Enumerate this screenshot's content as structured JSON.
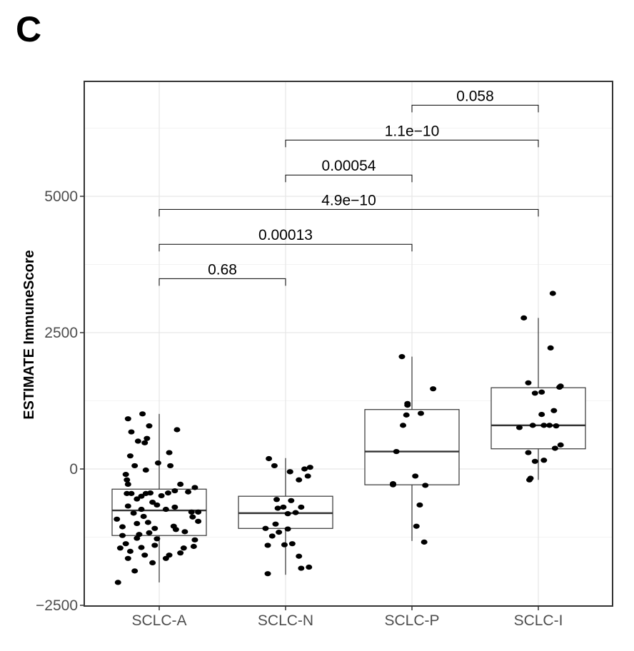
{
  "panel_label": "C",
  "chart_data": {
    "type": "box",
    "title": "",
    "xlabel": "",
    "ylabel": "ESTIMATE ImmuneScore",
    "ylim": [
      -2500,
      7300
    ],
    "yticks": [
      -2500,
      0,
      2500,
      5000
    ],
    "ytick_labels": [
      "−2500",
      "0",
      "2500",
      "5000"
    ],
    "grid": true,
    "categories": [
      "SCLC-A",
      "SCLC-N",
      "SCLC-P",
      "SCLC-I"
    ],
    "boxes": [
      {
        "name": "SCLC-A",
        "whisker_low": -2080,
        "q1": -1220,
        "median": -760,
        "q3": -370,
        "whisker_high": 1010
      },
      {
        "name": "SCLC-N",
        "whisker_low": -1940,
        "q1": -1090,
        "median": -810,
        "q3": -500,
        "whisker_high": 200
      },
      {
        "name": "SCLC-P",
        "whisker_low": -1320,
        "q1": -290,
        "median": 320,
        "q3": 1090,
        "whisker_high": 2060
      },
      {
        "name": "SCLC-I",
        "whisker_low": -200,
        "q1": 370,
        "median": 800,
        "q3": 1490,
        "whisker_high": 2770
      }
    ],
    "points": [
      [
        [
          -1.5,
          1010
        ],
        [
          -2.8,
          920
        ],
        [
          -0.9,
          790
        ],
        [
          1.6,
          720
        ],
        [
          -2.5,
          680
        ],
        [
          -1.1,
          560
        ],
        [
          -1.9,
          510
        ],
        [
          -1.3,
          480
        ],
        [
          0.9,
          300
        ],
        [
          -2.6,
          240
        ],
        [
          -0.1,
          110
        ],
        [
          1.0,
          60
        ],
        [
          -2.2,
          60
        ],
        [
          -3.0,
          -100
        ],
        [
          -1.2,
          -20
        ],
        [
          -2.9,
          -200
        ],
        [
          -2.8,
          -280
        ],
        [
          1.9,
          -280
        ],
        [
          1.4,
          -400
        ],
        [
          0.8,
          -440
        ],
        [
          -2.9,
          -450
        ],
        [
          -2.5,
          -450
        ],
        [
          -1.2,
          -450
        ],
        [
          3.2,
          -340
        ],
        [
          2.6,
          -420
        ],
        [
          -0.8,
          -440
        ],
        [
          0.2,
          -490
        ],
        [
          -1.6,
          -500
        ],
        [
          -2.0,
          -550
        ],
        [
          -0.6,
          -610
        ],
        [
          -2.8,
          -680
        ],
        [
          -0.2,
          -660
        ],
        [
          1.4,
          -700
        ],
        [
          -1.6,
          -740
        ],
        [
          0.6,
          -740
        ],
        [
          -2.3,
          -810
        ],
        [
          2.9,
          -790
        ],
        [
          3.5,
          -790
        ],
        [
          -1.4,
          -870
        ],
        [
          3.0,
          -880
        ],
        [
          -3.8,
          -920
        ],
        [
          3.5,
          -960
        ],
        [
          -1.0,
          -980
        ],
        [
          -2.0,
          -1000
        ],
        [
          1.3,
          -1050
        ],
        [
          -3.3,
          -1060
        ],
        [
          -0.4,
          -1090
        ],
        [
          1.5,
          -1110
        ],
        [
          2.3,
          -1150
        ],
        [
          -0.9,
          -1170
        ],
        [
          -1.8,
          -1200
        ],
        [
          -3.3,
          -1220
        ],
        [
          -2.0,
          -1270
        ],
        [
          3.2,
          -1300
        ],
        [
          -3.0,
          -1370
        ],
        [
          -1.6,
          -1440
        ],
        [
          -0.4,
          -1400
        ],
        [
          3.1,
          -1420
        ],
        [
          -3.5,
          -1450
        ],
        [
          -2.6,
          -1510
        ],
        [
          1.9,
          -1540
        ],
        [
          -1.3,
          -1580
        ],
        [
          -2.8,
          -1640
        ],
        [
          0.9,
          -1580
        ],
        [
          -0.6,
          -1720
        ],
        [
          -2.2,
          -1870
        ],
        [
          -3.7,
          -2080
        ],
        [
          0.6,
          -1640
        ],
        [
          2.2,
          -1450
        ],
        [
          -0.2,
          -1280
        ]
      ],
      [
        [
          -1.5,
          190
        ],
        [
          -1.0,
          60
        ],
        [
          2.2,
          30
        ],
        [
          1.7,
          0
        ],
        [
          0.4,
          -50
        ],
        [
          0.4,
          -50
        ],
        [
          1.2,
          -200
        ],
        [
          2.0,
          -130
        ],
        [
          -0.8,
          -560
        ],
        [
          0.5,
          -580
        ],
        [
          1.4,
          -700
        ],
        [
          -0.7,
          -720
        ],
        [
          -0.2,
          -700
        ],
        [
          0.9,
          -800
        ],
        [
          0.2,
          -820
        ],
        [
          -0.9,
          -1010
        ],
        [
          -1.8,
          -1090
        ],
        [
          0.2,
          -1100
        ],
        [
          -0.6,
          -1160
        ],
        [
          -1.2,
          -1230
        ],
        [
          0.6,
          -1370
        ],
        [
          -0.1,
          -1390
        ],
        [
          -1.6,
          -1400
        ],
        [
          1.2,
          -1600
        ],
        [
          2.1,
          -1800
        ],
        [
          1.4,
          -1820
        ],
        [
          -1.6,
          -1920
        ]
      ],
      [
        [
          -0.9,
          2060
        ],
        [
          -0.4,
          1170
        ],
        [
          -0.4,
          1200
        ],
        [
          -0.5,
          990
        ],
        [
          -0.8,
          800
        ],
        [
          0.8,
          1020
        ],
        [
          1.9,
          1470
        ],
        [
          -1.4,
          320
        ],
        [
          0.3,
          -130
        ],
        [
          -1.7,
          -290
        ],
        [
          -1.7,
          -270
        ],
        [
          1.2,
          -300
        ],
        [
          0.7,
          -660
        ],
        [
          0.4,
          -1050
        ],
        [
          1.1,
          -1340
        ]
      ],
      [
        [
          -1.3,
          2770
        ],
        [
          1.3,
          3220
        ],
        [
          1.1,
          2220
        ],
        [
          -0.9,
          1580
        ],
        [
          1.9,
          1500
        ],
        [
          2.0,
          1520
        ],
        [
          -0.3,
          1390
        ],
        [
          0.3,
          1410
        ],
        [
          -1.7,
          760
        ],
        [
          -0.5,
          800
        ],
        [
          0.5,
          800
        ],
        [
          1.0,
          800
        ],
        [
          1.6,
          790
        ],
        [
          1.4,
          1070
        ],
        [
          -0.9,
          300
        ],
        [
          -0.3,
          140
        ],
        [
          0.5,
          160
        ],
        [
          0.3,
          1000
        ],
        [
          2.0,
          440
        ],
        [
          1.5,
          380
        ],
        [
          -0.7,
          -170
        ],
        [
          -0.8,
          -200
        ]
      ]
    ],
    "comparisons": [
      {
        "groups": [
          "SCLC-A",
          "SCLC-N"
        ],
        "p_label": "0.68",
        "y": 3490
      },
      {
        "groups": [
          "SCLC-A",
          "SCLC-P"
        ],
        "p_label": "0.00013",
        "y": 4120
      },
      {
        "groups": [
          "SCLC-A",
          "SCLC-I"
        ],
        "p_label": "4.9e−10",
        "y": 4760
      },
      {
        "groups": [
          "SCLC-N",
          "SCLC-P"
        ],
        "p_label": "0.00054",
        "y": 5390
      },
      {
        "groups": [
          "SCLC-N",
          "SCLC-I"
        ],
        "p_label": "1.1e−10",
        "y": 6030
      },
      {
        "groups": [
          "SCLC-P",
          "SCLC-I"
        ],
        "p_label": "0.058",
        "y": 6670
      }
    ]
  }
}
